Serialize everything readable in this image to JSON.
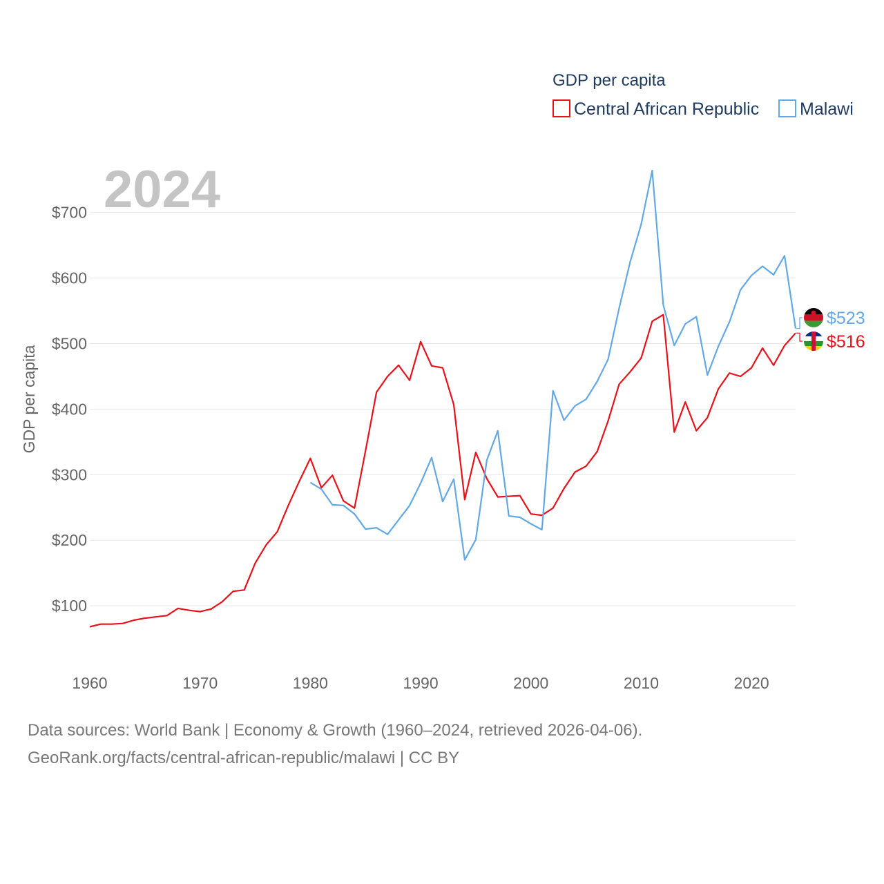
{
  "chart_data": {
    "type": "line",
    "title": "GDP per capita",
    "ylabel": "GDP per capita",
    "xlabel": "",
    "year_label": "2024",
    "xlim": [
      1960,
      2024
    ],
    "ylim": [
      0,
      760
    ],
    "x_ticks": [
      1960,
      1970,
      1980,
      1990,
      2000,
      2010,
      2020
    ],
    "x_tick_labels": [
      "1960",
      "1970",
      "1980",
      "1990",
      "2000",
      "2010",
      "2020"
    ],
    "y_ticks": [
      100,
      200,
      300,
      400,
      500,
      600,
      700
    ],
    "y_tick_labels": [
      "$100",
      "$200",
      "$300",
      "$400",
      "$500",
      "$600",
      "$700"
    ],
    "grid": true,
    "legend_position": "top-right",
    "series": [
      {
        "name": "Central African Republic",
        "color": "#e8111a",
        "end_label": "$516",
        "flag_colors": [
          "#003082",
          "#ffffff",
          "#289728",
          "#ffce00",
          "#d21034"
        ],
        "x": [
          1960,
          1961,
          1962,
          1963,
          1964,
          1965,
          1966,
          1967,
          1968,
          1969,
          1970,
          1971,
          1972,
          1973,
          1974,
          1975,
          1976,
          1977,
          1978,
          1979,
          1980,
          1981,
          1982,
          1983,
          1984,
          1985,
          1986,
          1987,
          1988,
          1989,
          1990,
          1991,
          1992,
          1993,
          1994,
          1995,
          1996,
          1997,
          1998,
          1999,
          2000,
          2001,
          2002,
          2003,
          2004,
          2005,
          2006,
          2007,
          2008,
          2009,
          2010,
          2011,
          2012,
          2013,
          2014,
          2015,
          2016,
          2017,
          2018,
          2019,
          2020,
          2021,
          2022,
          2023,
          2024
        ],
        "values": [
          68,
          72,
          72,
          73,
          78,
          81,
          83,
          85,
          96,
          93,
          91,
          95,
          106,
          122,
          124,
          165,
          193,
          213,
          253,
          290,
          325,
          280,
          299,
          260,
          249,
          336,
          426,
          450,
          467,
          444,
          503,
          466,
          463,
          407,
          262,
          334,
          294,
          266,
          267,
          268,
          240,
          238,
          249,
          279,
          304,
          313,
          335,
          382,
          438,
          457,
          478,
          534,
          544,
          365,
          411,
          367,
          387,
          431,
          455,
          450,
          463,
          493,
          467,
          497,
          516
        ]
      },
      {
        "name": "Malawi",
        "color": "#62a8e5",
        "end_label": "$523",
        "flag_colors": [
          "#000000",
          "#ce1126",
          "#339e35"
        ],
        "x": [
          1980,
          1981,
          1982,
          1983,
          1984,
          1985,
          1986,
          1987,
          1988,
          1989,
          1990,
          1991,
          1992,
          1993,
          1994,
          1995,
          1996,
          1997,
          1998,
          1999,
          2000,
          2001,
          2002,
          2003,
          2004,
          2005,
          2006,
          2007,
          2008,
          2009,
          2010,
          2011,
          2012,
          2013,
          2014,
          2015,
          2016,
          2017,
          2018,
          2019,
          2020,
          2021,
          2022,
          2023,
          2024
        ],
        "values": [
          288,
          278,
          254,
          253,
          240,
          217,
          219,
          209,
          231,
          253,
          287,
          326,
          259,
          293,
          170,
          201,
          322,
          367,
          237,
          235,
          225,
          216,
          428,
          383,
          405,
          415,
          442,
          476,
          554,
          625,
          682,
          764,
          559,
          497,
          530,
          541,
          452,
          496,
          533,
          582,
          604,
          618,
          605,
          634,
          523
        ]
      }
    ]
  },
  "footer": {
    "line1": "Data sources: World Bank | Economy & Growth (1960–2024, retrieved 2026-04-06).",
    "line2": "GeoRank.org/facts/central-african-republic/malawi | CC BY"
  }
}
